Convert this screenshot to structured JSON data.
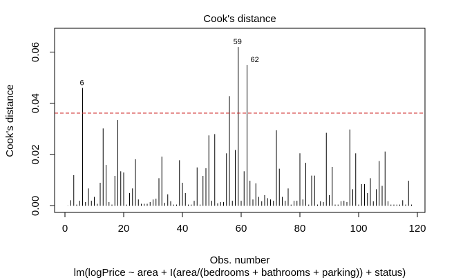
{
  "chart_data": {
    "type": "bar",
    "title": "Cook's distance",
    "xlabel": "Obs. number",
    "ylabel": "Cook's distance",
    "sub_caption": "lm(logPrice ~ area + I(area/(bedrooms + bathrooms + parking)) + status)",
    "xlim": [
      0,
      120
    ],
    "ylim": [
      0,
      0.065
    ],
    "xticks": [
      0,
      20,
      40,
      60,
      80,
      100,
      120
    ],
    "yticks": [
      0.0,
      0.02,
      0.04,
      0.06
    ],
    "xtick_labels": [
      "0",
      "20",
      "40",
      "60",
      "80",
      "100",
      "120"
    ],
    "ytick_labels": [
      "0.00",
      "0.02",
      "0.04",
      "0.06"
    ],
    "threshold": 0.0362,
    "threshold_color": "#cc2222",
    "highlighted": [
      {
        "obs": 6,
        "label": "6"
      },
      {
        "obs": 59,
        "label": "59"
      },
      {
        "obs": 62,
        "label": "62"
      }
    ],
    "x": [
      1,
      2,
      3,
      4,
      5,
      6,
      7,
      8,
      9,
      10,
      11,
      12,
      13,
      14,
      15,
      16,
      17,
      18,
      19,
      20,
      21,
      22,
      23,
      24,
      25,
      26,
      27,
      28,
      29,
      30,
      31,
      32,
      33,
      34,
      35,
      36,
      37,
      38,
      39,
      40,
      41,
      42,
      43,
      44,
      45,
      46,
      47,
      48,
      49,
      50,
      51,
      52,
      53,
      54,
      55,
      56,
      57,
      58,
      59,
      60,
      61,
      62,
      63,
      64,
      65,
      66,
      67,
      68,
      69,
      70,
      71,
      72,
      73,
      74,
      75,
      76,
      77,
      78,
      79,
      80,
      81,
      82,
      83,
      84,
      85,
      86,
      87,
      88,
      89,
      90,
      91,
      92,
      93,
      94,
      95,
      96,
      97,
      98,
      99,
      100,
      101,
      102,
      103,
      104,
      105,
      106,
      107,
      108,
      109,
      110,
      111,
      112,
      113,
      114,
      115,
      116,
      117,
      118
    ],
    "values": [
      0.0001,
      0.0022,
      0.012,
      0.0005,
      0.002,
      0.046,
      0.0015,
      0.0068,
      0.002,
      0.0035,
      0.0008,
      0.009,
      0.0302,
      0.016,
      0.0015,
      0.0005,
      0.0117,
      0.0335,
      0.0135,
      0.013,
      0.0005,
      0.005,
      0.0068,
      0.0182,
      0.0025,
      0.0008,
      0.0008,
      0.0008,
      0.0015,
      0.0025,
      0.0028,
      0.0108,
      0.0192,
      0.0012,
      0.0045,
      0.0018,
      0.0005,
      0.0005,
      0.0178,
      0.009,
      0.005,
      0.0005,
      0.0005,
      0.002,
      0.015,
      0.0005,
      0.0117,
      0.0147,
      0.0275,
      0.002,
      0.028,
      0.001,
      0.0015,
      0.0015,
      0.0205,
      0.0428,
      0.002,
      0.0218,
      0.062,
      0.002,
      0.0135,
      0.055,
      0.0098,
      0.0025,
      0.0088,
      0.0035,
      0.0018,
      0.0042,
      0.003,
      0.0025,
      0.002,
      0.0295,
      0.0145,
      0.0035,
      0.002,
      0.0068,
      0.0005,
      0.002,
      0.002,
      0.0205,
      0.0025,
      0.0168,
      0.0005,
      0.0118,
      0.0118,
      0.0005,
      0.0018,
      0.0015,
      0.0285,
      0.0042,
      0.0152,
      0.0005,
      0.0005,
      0.0018,
      0.002,
      0.0015,
      0.0298,
      0.0065,
      0.0205,
      0.0005,
      0.0085,
      0.0085,
      0.005,
      0.0108,
      0.0018,
      0.0065,
      0.0175,
      0.0078,
      0.0212,
      0.0018,
      0.0005,
      0.0005,
      0.0005,
      0.0005,
      0.0022,
      0.0005,
      0.0098,
      0.0005
    ]
  }
}
